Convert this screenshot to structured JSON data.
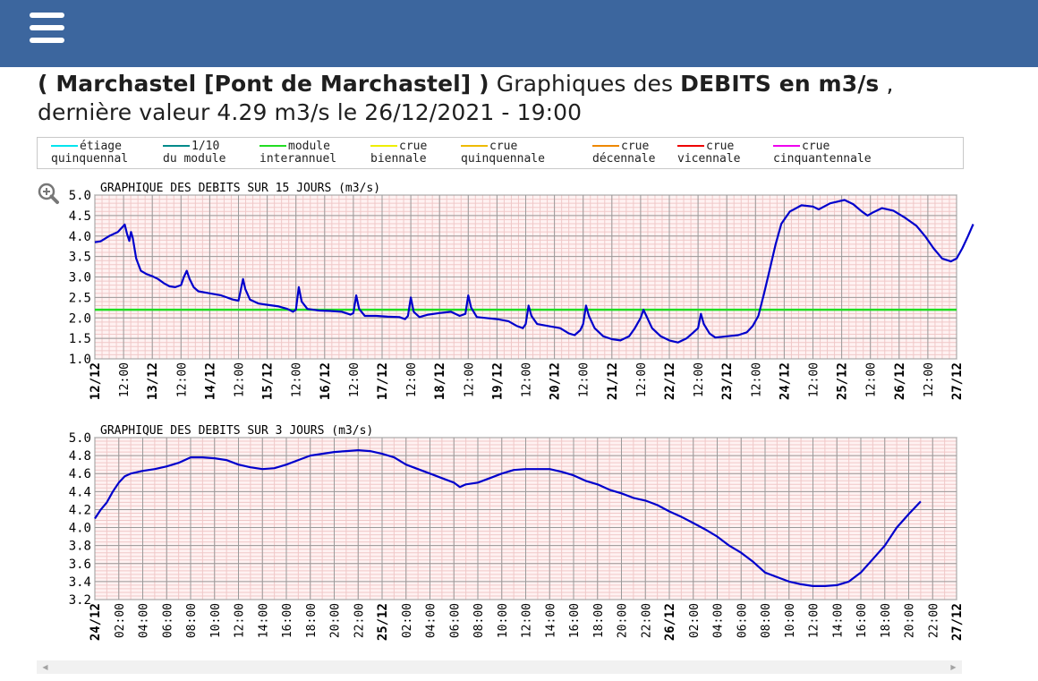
{
  "header": {
    "menu_icon": "hamburger-menu-icon"
  },
  "heading": {
    "station": "( Marchastel [Pont de Marchastel] )",
    "prefix": " Graphiques des ",
    "measure": "DEBITS en m3/s",
    "suffix": " ,",
    "line2": "dernière valeur 4.29 m3/s le 26/12/2021 - 19:00"
  },
  "legend": [
    {
      "l1": "étiage",
      "l2": "quinquennal",
      "color": "#00e5ee"
    },
    {
      "l1": "1/10",
      "l2": "du module",
      "color": "#008b8b"
    },
    {
      "l1": "module",
      "l2": "interannuel",
      "color": "#22dd22"
    },
    {
      "l1": "crue",
      "l2": "biennale",
      "color": "#eeee00"
    },
    {
      "l1": "crue",
      "l2": "quinquennale",
      "color": "#eebb00"
    },
    {
      "l1": "crue",
      "l2": "décennale",
      "color": "#ee8800"
    },
    {
      "l1": "crue",
      "l2": "vicennale",
      "color": "#ee0000"
    },
    {
      "l1": "crue",
      "l2": "cinquantennale",
      "color": "#ee00ee"
    }
  ],
  "zoom_icon": "zoom-in-icon",
  "chart_data": [
    {
      "type": "line",
      "title": "GRAPHIQUE DES DEBITS SUR 15 JOURS (m3/s)",
      "xlabel": "",
      "ylabel": "",
      "ylim": [
        1.0,
        5.0
      ],
      "yticks": [
        "1.0",
        "1.5",
        "2.0",
        "2.5",
        "3.0",
        "3.5",
        "4.0",
        "4.5",
        "5.0"
      ],
      "xticks": [
        "12/12",
        "12:00",
        "13/12",
        "12:00",
        "14/12",
        "12:00",
        "15/12",
        "12:00",
        "16/12",
        "12:00",
        "17/12",
        "12:00",
        "18/12",
        "12:00",
        "19/12",
        "12:00",
        "20/12",
        "12:00",
        "21/12",
        "12:00",
        "22/12",
        "12:00",
        "23/12",
        "12:00",
        "24/12",
        "12:00",
        "25/12",
        "12:00",
        "26/12",
        "12:00",
        "27/12"
      ],
      "x_unit": "days since 12/12 00:00",
      "reference_line": {
        "name": "module interannuel",
        "value": 2.2,
        "color": "#22dd22"
      },
      "series": [
        {
          "name": "débit",
          "color": "#0000cc",
          "points": [
            [
              0,
              3.85
            ],
            [
              0.1,
              3.87
            ],
            [
              0.25,
              4.0
            ],
            [
              0.4,
              4.1
            ],
            [
              0.48,
              4.22
            ],
            [
              0.52,
              4.28
            ],
            [
              0.56,
              4.05
            ],
            [
              0.6,
              3.88
            ],
            [
              0.63,
              4.1
            ],
            [
              0.66,
              3.95
            ],
            [
              0.72,
              3.45
            ],
            [
              0.8,
              3.15
            ],
            [
              0.9,
              3.07
            ],
            [
              1.0,
              3.02
            ],
            [
              1.1,
              2.95
            ],
            [
              1.2,
              2.85
            ],
            [
              1.3,
              2.77
            ],
            [
              1.4,
              2.75
            ],
            [
              1.5,
              2.8
            ],
            [
              1.55,
              3.0
            ],
            [
              1.6,
              3.15
            ],
            [
              1.65,
              2.95
            ],
            [
              1.72,
              2.75
            ],
            [
              1.8,
              2.65
            ],
            [
              2.0,
              2.6
            ],
            [
              2.2,
              2.55
            ],
            [
              2.4,
              2.45
            ],
            [
              2.5,
              2.42
            ],
            [
              2.52,
              2.55
            ],
            [
              2.58,
              2.95
            ],
            [
              2.62,
              2.7
            ],
            [
              2.7,
              2.45
            ],
            [
              2.85,
              2.35
            ],
            [
              3.0,
              2.32
            ],
            [
              3.2,
              2.28
            ],
            [
              3.35,
              2.22
            ],
            [
              3.45,
              2.15
            ],
            [
              3.5,
              2.2
            ],
            [
              3.55,
              2.75
            ],
            [
              3.6,
              2.4
            ],
            [
              3.7,
              2.22
            ],
            [
              3.9,
              2.18
            ],
            [
              4.1,
              2.17
            ],
            [
              4.3,
              2.15
            ],
            [
              4.45,
              2.08
            ],
            [
              4.5,
              2.12
            ],
            [
              4.55,
              2.55
            ],
            [
              4.6,
              2.22
            ],
            [
              4.7,
              2.05
            ],
            [
              4.9,
              2.05
            ],
            [
              5.1,
              2.03
            ],
            [
              5.3,
              2.02
            ],
            [
              5.4,
              1.97
            ],
            [
              5.45,
              2.05
            ],
            [
              5.5,
              2.5
            ],
            [
              5.55,
              2.15
            ],
            [
              5.65,
              2.02
            ],
            [
              5.8,
              2.08
            ],
            [
              6.0,
              2.12
            ],
            [
              6.2,
              2.15
            ],
            [
              6.35,
              2.05
            ],
            [
              6.45,
              2.1
            ],
            [
              6.5,
              2.55
            ],
            [
              6.55,
              2.25
            ],
            [
              6.65,
              2.02
            ],
            [
              6.8,
              2.0
            ],
            [
              7.0,
              1.97
            ],
            [
              7.2,
              1.92
            ],
            [
              7.35,
              1.8
            ],
            [
              7.45,
              1.75
            ],
            [
              7.5,
              1.85
            ],
            [
              7.55,
              2.3
            ],
            [
              7.6,
              2.05
            ],
            [
              7.7,
              1.85
            ],
            [
              7.9,
              1.8
            ],
            [
              8.1,
              1.75
            ],
            [
              8.25,
              1.62
            ],
            [
              8.35,
              1.58
            ],
            [
              8.45,
              1.7
            ],
            [
              8.5,
              1.85
            ],
            [
              8.55,
              2.3
            ],
            [
              8.6,
              2.05
            ],
            [
              8.7,
              1.75
            ],
            [
              8.85,
              1.55
            ],
            [
              9.0,
              1.48
            ],
            [
              9.15,
              1.45
            ],
            [
              9.3,
              1.55
            ],
            [
              9.4,
              1.75
            ],
            [
              9.5,
              2.0
            ],
            [
              9.55,
              2.2
            ],
            [
              9.6,
              2.05
            ],
            [
              9.7,
              1.75
            ],
            [
              9.85,
              1.55
            ],
            [
              10.0,
              1.45
            ],
            [
              10.15,
              1.4
            ],
            [
              10.3,
              1.5
            ],
            [
              10.4,
              1.62
            ],
            [
              10.5,
              1.75
            ],
            [
              10.55,
              2.1
            ],
            [
              10.6,
              1.85
            ],
            [
              10.7,
              1.62
            ],
            [
              10.8,
              1.52
            ],
            [
              11.0,
              1.55
            ],
            [
              11.2,
              1.58
            ],
            [
              11.35,
              1.65
            ],
            [
              11.45,
              1.8
            ],
            [
              11.55,
              2.05
            ],
            [
              11.65,
              2.6
            ],
            [
              11.75,
              3.2
            ],
            [
              11.85,
              3.8
            ],
            [
              11.95,
              4.3
            ],
            [
              12.1,
              4.6
            ],
            [
              12.3,
              4.75
            ],
            [
              12.5,
              4.72
            ],
            [
              12.6,
              4.65
            ],
            [
              12.8,
              4.8
            ],
            [
              12.95,
              4.85
            ],
            [
              13.05,
              4.88
            ],
            [
              13.2,
              4.78
            ],
            [
              13.35,
              4.6
            ],
            [
              13.45,
              4.5
            ],
            [
              13.55,
              4.58
            ],
            [
              13.7,
              4.68
            ],
            [
              13.9,
              4.62
            ],
            [
              14.1,
              4.45
            ],
            [
              14.3,
              4.25
            ],
            [
              14.45,
              4.0
            ],
            [
              14.6,
              3.7
            ],
            [
              14.75,
              3.45
            ],
            [
              14.9,
              3.38
            ],
            [
              15.0,
              3.45
            ],
            [
              15.1,
              3.7
            ],
            [
              15.2,
              4.0
            ],
            [
              15.29,
              4.29
            ]
          ]
        }
      ]
    },
    {
      "type": "line",
      "title": "GRAPHIQUE DES DEBITS SUR 3 JOURS (m3/s)",
      "xlabel": "",
      "ylabel": "",
      "ylim": [
        3.2,
        5.0
      ],
      "yticks": [
        "3.2",
        "3.4",
        "3.6",
        "3.8",
        "4.0",
        "4.2",
        "4.4",
        "4.6",
        "4.8",
        "5.0"
      ],
      "xticks": [
        "24/12",
        "02:00",
        "04:00",
        "06:00",
        "08:00",
        "10:00",
        "12:00",
        "14:00",
        "16:00",
        "18:00",
        "20:00",
        "22:00",
        "25/12",
        "02:00",
        "04:00",
        "06:00",
        "08:00",
        "10:00",
        "12:00",
        "14:00",
        "16:00",
        "18:00",
        "20:00",
        "22:00",
        "26/12",
        "02:00",
        "04:00",
        "06:00",
        "08:00",
        "10:00",
        "12:00",
        "14:00",
        "16:00",
        "18:00",
        "20:00",
        "22:00",
        "27/12"
      ],
      "x_unit": "hours since 24/12 00:00",
      "series": [
        {
          "name": "débit",
          "color": "#0000cc",
          "points": [
            [
              0,
              4.1
            ],
            [
              0.5,
              4.2
            ],
            [
              1,
              4.28
            ],
            [
              1.5,
              4.4
            ],
            [
              2,
              4.5
            ],
            [
              2.5,
              4.57
            ],
            [
              3,
              4.6
            ],
            [
              4,
              4.63
            ],
            [
              5,
              4.65
            ],
            [
              6,
              4.68
            ],
            [
              7,
              4.72
            ],
            [
              8,
              4.78
            ],
            [
              9,
              4.78
            ],
            [
              10,
              4.77
            ],
            [
              11,
              4.75
            ],
            [
              12,
              4.7
            ],
            [
              13,
              4.67
            ],
            [
              14,
              4.65
            ],
            [
              15,
              4.66
            ],
            [
              16,
              4.7
            ],
            [
              17,
              4.75
            ],
            [
              18,
              4.8
            ],
            [
              19,
              4.82
            ],
            [
              20,
              4.84
            ],
            [
              21,
              4.85
            ],
            [
              22,
              4.86
            ],
            [
              23,
              4.85
            ],
            [
              24,
              4.82
            ],
            [
              25,
              4.78
            ],
            [
              26,
              4.7
            ],
            [
              27,
              4.65
            ],
            [
              28,
              4.6
            ],
            [
              29,
              4.55
            ],
            [
              30,
              4.5
            ],
            [
              30.5,
              4.45
            ],
            [
              31,
              4.48
            ],
            [
              32,
              4.5
            ],
            [
              33,
              4.55
            ],
            [
              34,
              4.6
            ],
            [
              35,
              4.64
            ],
            [
              36,
              4.65
            ],
            [
              37,
              4.65
            ],
            [
              38,
              4.65
            ],
            [
              39,
              4.62
            ],
            [
              40,
              4.58
            ],
            [
              41,
              4.52
            ],
            [
              42,
              4.48
            ],
            [
              43,
              4.42
            ],
            [
              44,
              4.38
            ],
            [
              45,
              4.33
            ],
            [
              46,
              4.3
            ],
            [
              47,
              4.25
            ],
            [
              48,
              4.18
            ],
            [
              49,
              4.12
            ],
            [
              50,
              4.05
            ],
            [
              51,
              3.98
            ],
            [
              52,
              3.9
            ],
            [
              53,
              3.8
            ],
            [
              54,
              3.72
            ],
            [
              55,
              3.62
            ],
            [
              56,
              3.5
            ],
            [
              57,
              3.45
            ],
            [
              58,
              3.4
            ],
            [
              59,
              3.37
            ],
            [
              60,
              3.35
            ],
            [
              61,
              3.35
            ],
            [
              62,
              3.36
            ],
            [
              63,
              3.4
            ],
            [
              64,
              3.5
            ],
            [
              65,
              3.65
            ],
            [
              66,
              3.8
            ],
            [
              67,
              4.0
            ],
            [
              68,
              4.15
            ],
            [
              69,
              4.29
            ]
          ]
        }
      ]
    }
  ]
}
